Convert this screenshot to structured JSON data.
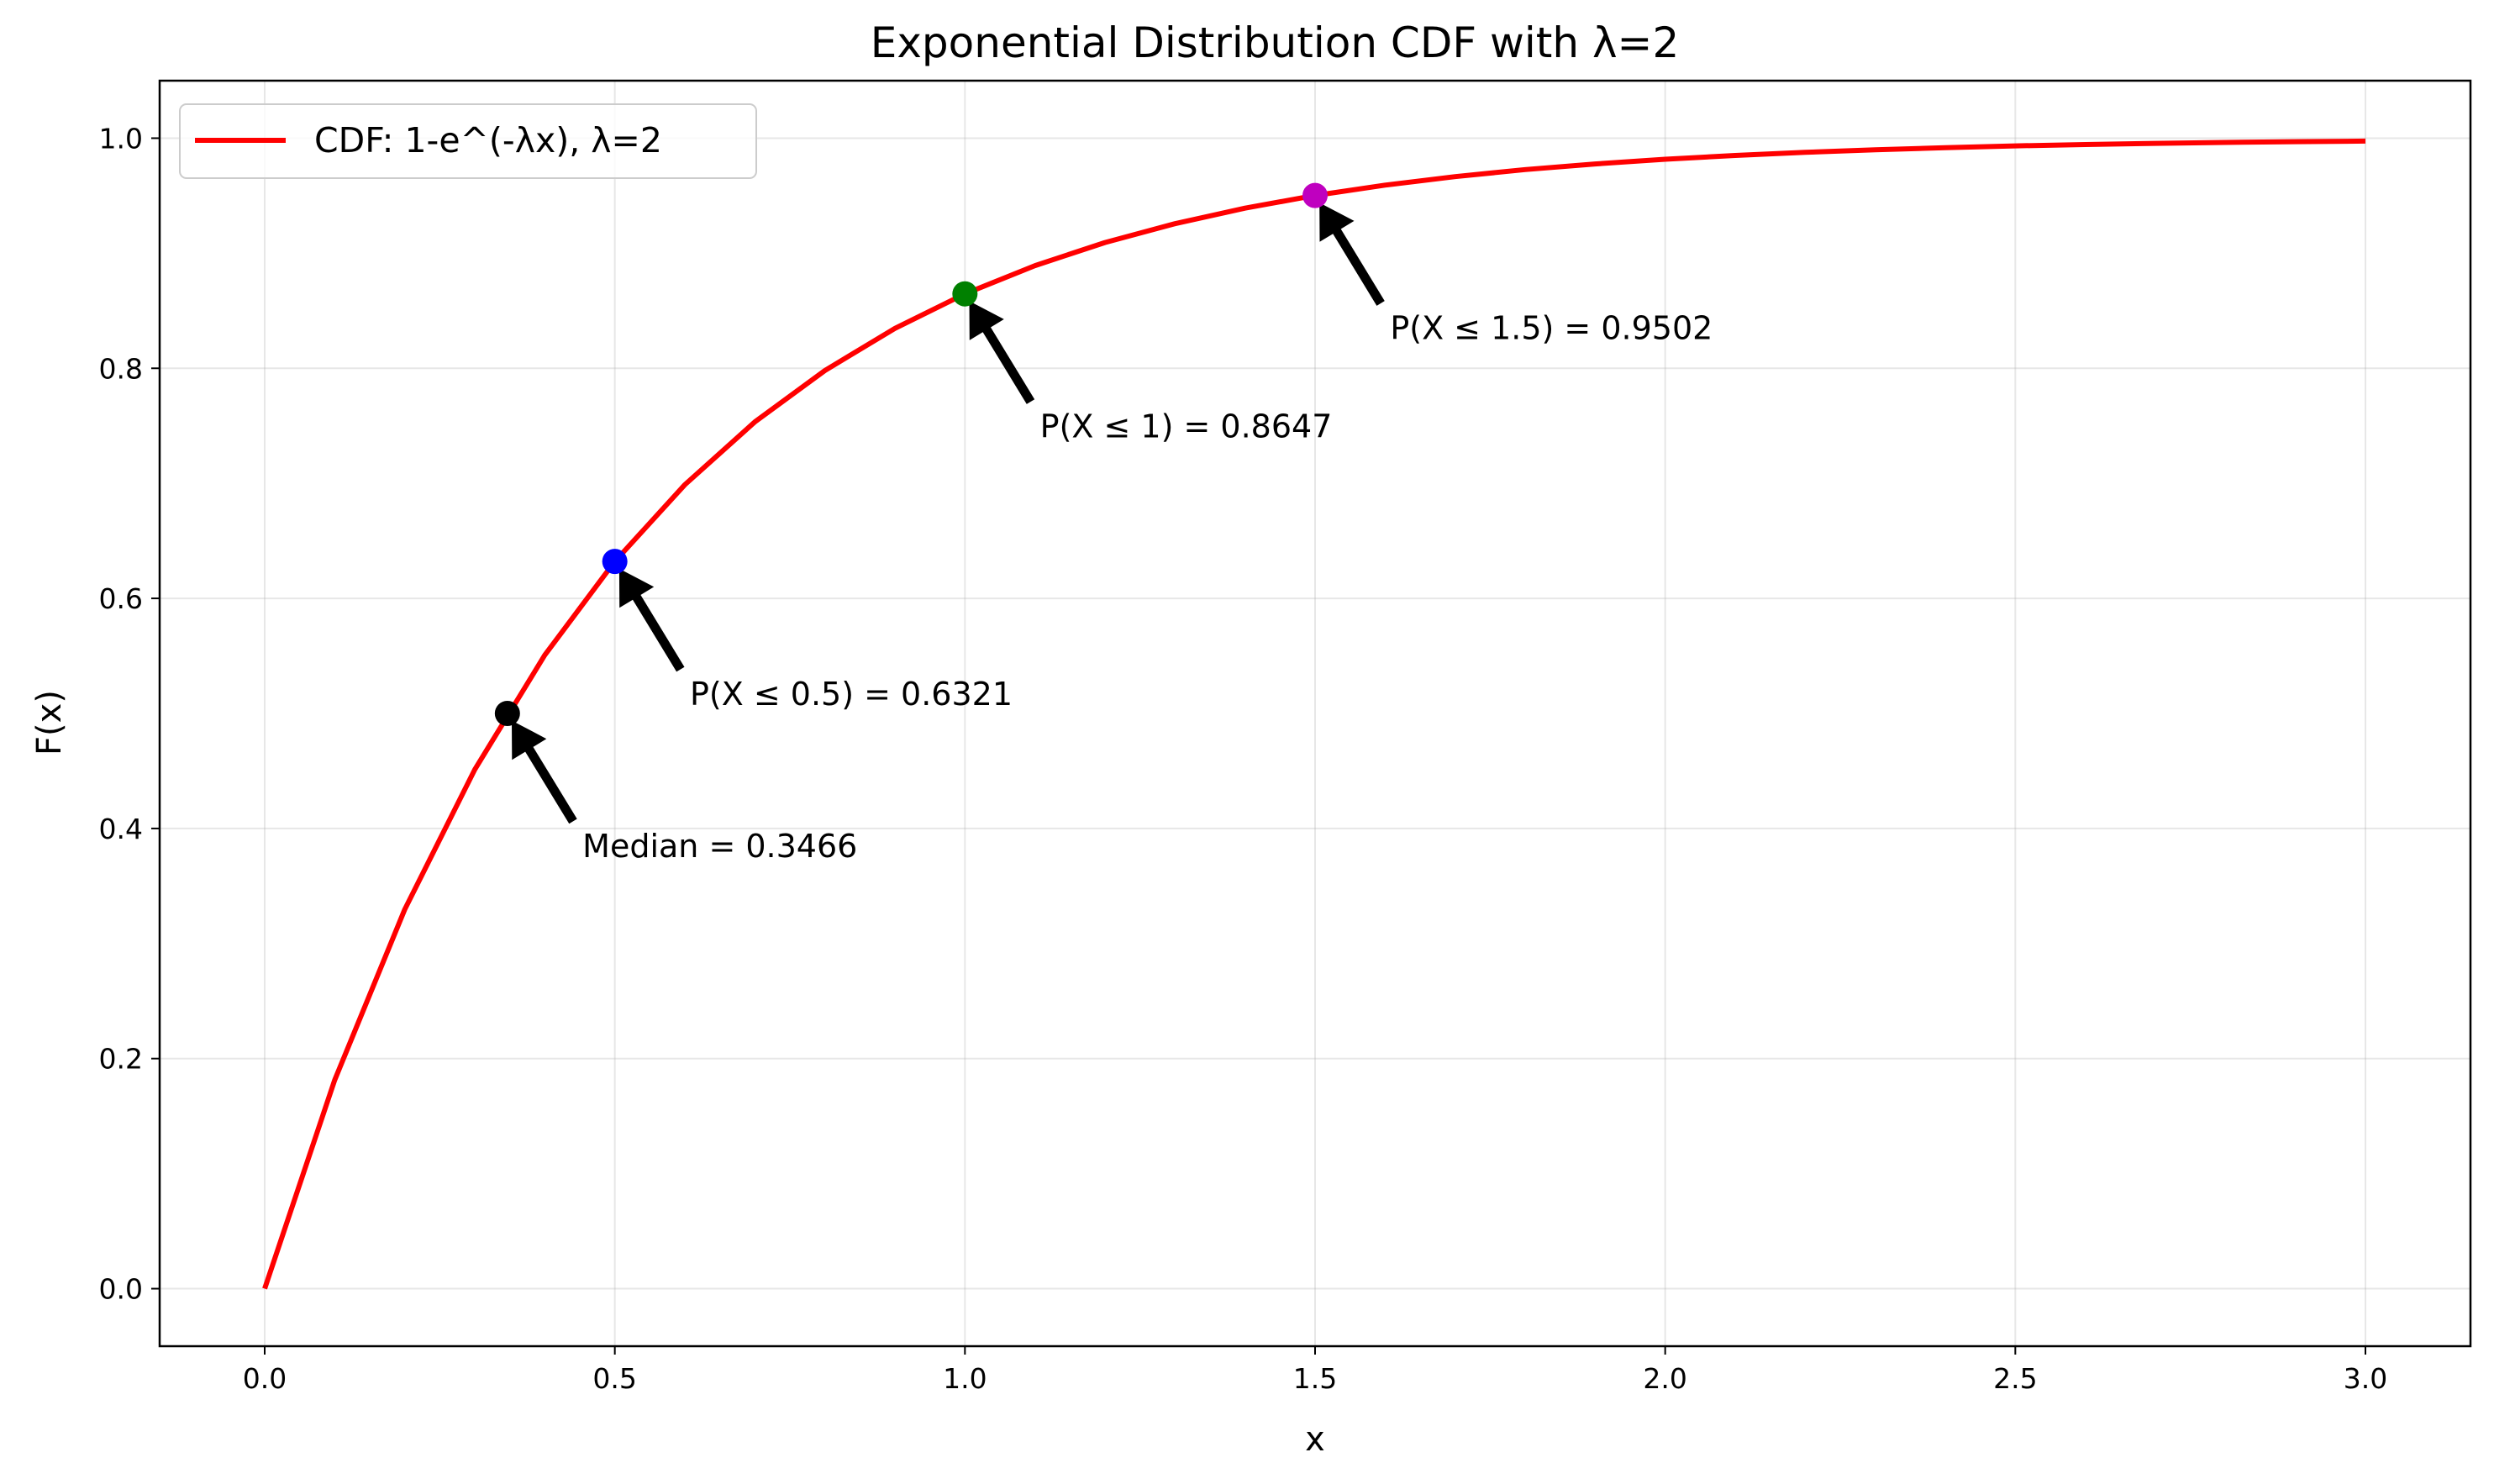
{
  "chart_data": {
    "type": "line",
    "title": "Exponential Distribution CDF with λ=2",
    "xlabel": "x",
    "ylabel": "F(x)",
    "xlim": [
      -0.15,
      3.15
    ],
    "ylim": [
      -0.05,
      1.05
    ],
    "grid": true,
    "legend_position": "top-left",
    "x_ticks": [
      0.0,
      0.5,
      1.0,
      1.5,
      2.0,
      2.5,
      3.0
    ],
    "x_tick_labels": [
      "0.0",
      "0.5",
      "1.0",
      "1.5",
      "2.0",
      "2.5",
      "3.0"
    ],
    "y_ticks": [
      0.0,
      0.2,
      0.4,
      0.6,
      0.8,
      1.0
    ],
    "y_tick_labels": [
      "0.0",
      "0.2",
      "0.4",
      "0.6",
      "0.8",
      "1.0"
    ],
    "series": [
      {
        "name": "CDF: 1-e^(-λx), λ=2",
        "color": "#ff0000",
        "x": [
          0.0,
          0.1,
          0.2,
          0.3,
          0.4,
          0.5,
          0.6,
          0.7,
          0.8,
          0.9,
          1.0,
          1.1,
          1.2,
          1.3,
          1.4,
          1.5,
          1.6,
          1.7,
          1.8,
          1.9,
          2.0,
          2.1,
          2.2,
          2.3,
          2.4,
          2.5,
          2.6,
          2.7,
          2.8,
          2.9,
          3.0
        ],
        "y": [
          0.0,
          0.1813,
          0.3297,
          0.4512,
          0.5507,
          0.6321,
          0.6988,
          0.7534,
          0.7981,
          0.8347,
          0.8647,
          0.8892,
          0.9093,
          0.9257,
          0.9392,
          0.9502,
          0.9592,
          0.9666,
          0.9727,
          0.9776,
          0.9817,
          0.985,
          0.9877,
          0.9899,
          0.9918,
          0.9933,
          0.9945,
          0.9955,
          0.9963,
          0.997,
          0.9975
        ]
      }
    ],
    "points": [
      {
        "x": 0.3466,
        "y": 0.5,
        "color": "#000000",
        "label": "Median = 0.3466"
      },
      {
        "x": 0.5,
        "y": 0.6321,
        "color": "#0000ff",
        "label": "P(X ≤ 0.5) = 0.6321"
      },
      {
        "x": 1.0,
        "y": 0.8647,
        "color": "#008000",
        "label": "P(X ≤ 1) = 0.8647"
      },
      {
        "x": 1.5,
        "y": 0.9502,
        "color": "#bf00bf",
        "label": "P(X ≤ 1.5) = 0.9502"
      }
    ]
  }
}
